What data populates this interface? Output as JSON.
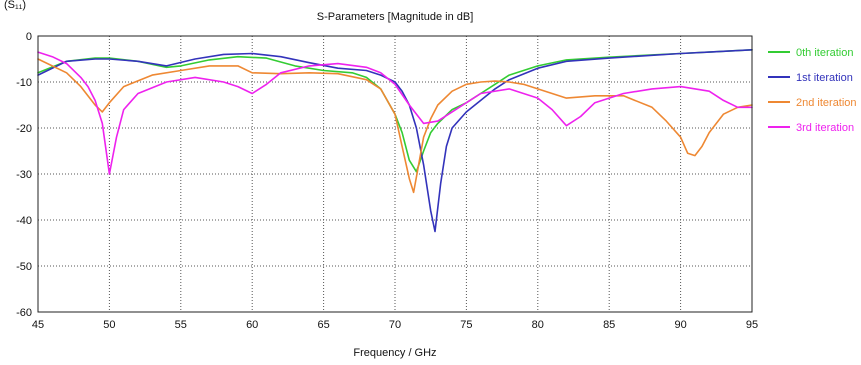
{
  "corner_label": "(S₁₁)",
  "chart_data": {
    "type": "line",
    "title": "S-Parameters [Magnitude in dB]",
    "xlabel": "Frequency / GHz",
    "ylabel": "",
    "xlim": [
      45,
      95
    ],
    "ylim": [
      -60,
      0
    ],
    "xticks": [
      45,
      50,
      55,
      60,
      65,
      70,
      75,
      80,
      85,
      90,
      95
    ],
    "yticks": [
      0,
      -10,
      -20,
      -30,
      -40,
      -50,
      -60
    ],
    "grid": true,
    "legend_position": "right",
    "series": [
      {
        "name": "0th iteration",
        "color": "#33cc33",
        "x": [
          45,
          47,
          49,
          50,
          52,
          54,
          55,
          57,
          59,
          61,
          63,
          65,
          67,
          68,
          69,
          70,
          70.5,
          71,
          71.5,
          72,
          72.5,
          73,
          73.5,
          74,
          75,
          76,
          77,
          78,
          80,
          82,
          85,
          88,
          90,
          92,
          95
        ],
        "values": [
          -8,
          -5.5,
          -4.8,
          -4.8,
          -5.5,
          -6.8,
          -6.5,
          -5.2,
          -4.5,
          -4.8,
          -6.5,
          -7.5,
          -8,
          -9,
          -11.5,
          -17,
          -21,
          -27,
          -29.5,
          -25,
          -21,
          -19,
          -17.5,
          -16,
          -14.5,
          -12.5,
          -10.5,
          -8.5,
          -6.5,
          -5.2,
          -4.6,
          -4.1,
          -3.8,
          -3.5,
          -3
        ]
      },
      {
        "name": "1st iteration",
        "color": "#3333bb",
        "x": [
          45,
          47,
          49,
          50,
          52,
          54,
          56,
          58,
          60,
          62,
          64,
          66,
          68,
          69,
          70,
          70.5,
          71,
          71.5,
          72,
          72.5,
          72.8,
          73.2,
          73.6,
          74,
          75,
          76,
          77,
          78,
          80,
          82,
          85,
          88,
          90,
          92,
          95
        ],
        "values": [
          -8.5,
          -5.5,
          -5,
          -5,
          -5.5,
          -6.5,
          -5,
          -4,
          -3.8,
          -4.5,
          -5.8,
          -7,
          -7.5,
          -8.5,
          -10,
          -12,
          -15,
          -20,
          -28,
          -38,
          -42.5,
          -32,
          -24,
          -20,
          -16.5,
          -14,
          -11.5,
          -9.5,
          -7,
          -5.5,
          -4.8,
          -4.2,
          -3.8,
          -3.5,
          -3
        ]
      },
      {
        "name": "2nd iteration",
        "color": "#ee8833",
        "x": [
          45,
          47,
          48,
          49,
          49.5,
          50,
          51,
          53,
          55,
          57,
          59,
          60,
          62,
          64,
          66,
          68,
          69,
          70,
          70.5,
          71,
          71.3,
          71.6,
          72,
          72.5,
          73,
          74,
          75,
          76,
          77,
          78,
          79,
          80,
          82,
          84,
          86,
          88,
          89,
          90,
          90.5,
          91,
          91.5,
          92,
          93,
          94,
          95
        ],
        "values": [
          -5,
          -8,
          -11,
          -15,
          -16.5,
          -14.5,
          -11,
          -8.5,
          -7.5,
          -6.5,
          -6.5,
          -8,
          -8.2,
          -8,
          -8.2,
          -9.5,
          -11.5,
          -17,
          -24,
          -31,
          -34,
          -29,
          -22,
          -18,
          -15,
          -12,
          -10.5,
          -10,
          -9.8,
          -10,
          -10.5,
          -11.5,
          -13.5,
          -13,
          -13,
          -15.5,
          -18.5,
          -22,
          -25.5,
          -26,
          -24,
          -21,
          -17,
          -15.5,
          -15
        ]
      },
      {
        "name": "3rd iteration",
        "color": "#ee22ee",
        "x": [
          45,
          46,
          47,
          48,
          48.5,
          49,
          49.5,
          50,
          50.5,
          51,
          52,
          54,
          56,
          58,
          59,
          60,
          61,
          62,
          64,
          66,
          68,
          69,
          70,
          71,
          72,
          73,
          74,
          76,
          78,
          80,
          81,
          82,
          83,
          84,
          86,
          88,
          90,
          92,
          93,
          94,
          95
        ],
        "values": [
          -3.5,
          -4.5,
          -6,
          -9,
          -11,
          -14,
          -19,
          -30,
          -22,
          -16,
          -12.5,
          -10,
          -9,
          -10,
          -11,
          -12.5,
          -10.5,
          -8,
          -6.5,
          -6,
          -6.8,
          -8,
          -10.5,
          -15,
          -19,
          -18.5,
          -16.5,
          -12.5,
          -11.5,
          -13.5,
          -16,
          -19.5,
          -17.5,
          -14.5,
          -12.5,
          -11.5,
          -11,
          -12,
          -14,
          -15.5,
          -15.5
        ]
      }
    ]
  }
}
